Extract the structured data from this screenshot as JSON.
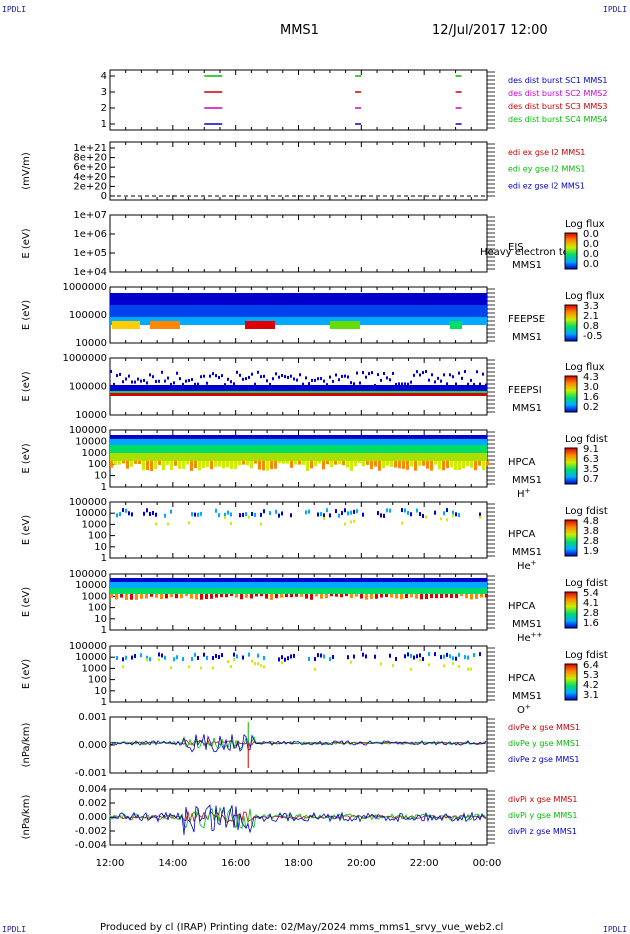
{
  "watermarks": [
    "IPDLI",
    "IPDLI",
    "IPDLI",
    "IPDLI"
  ],
  "header": {
    "mission": "MMS1",
    "date": "12/Jul/2017 12:00"
  },
  "footer": "Produced by cl (IRAP)   Printing date: 02/May/2024   mms_mms1_srvy_vue_web2.cl",
  "chart_data": {
    "type": "multi-panel",
    "x_ticks": [
      "12:00",
      "14:00",
      "16:00",
      "18:00",
      "20:00",
      "22:00",
      "00:00"
    ],
    "panels": [
      {
        "id": "des-burst",
        "ylabel": "",
        "yticks": [
          "4",
          "3",
          "2",
          "1"
        ],
        "legend": [
          {
            "text": "des dist burst SC1 MMS1",
            "color": "#0000cc"
          },
          {
            "text": "des dist burst SC2 MMS2",
            "color": "#cc00cc"
          },
          {
            "text": "des dist burst SC3 MMS3",
            "color": "#cc0000"
          },
          {
            "text": "des dist burst SC4 MMS4",
            "color": "#00bb00"
          }
        ],
        "bursts_hours": [
          15.0,
          19.8,
          23.0
        ],
        "levels": [
          4,
          3,
          2,
          1
        ],
        "level_colors": [
          "#00bb00",
          "#cc0000",
          "#cc00cc",
          "#0000cc"
        ]
      },
      {
        "id": "edi",
        "ylabel": "(mV/m)",
        "yticks": [
          "1e+21",
          "8e+20",
          "6e+20",
          "4e+20",
          "2e+20",
          "0"
        ],
        "legend": [
          {
            "text": "edi ex gse l2 MMS1",
            "color": "#cc0000"
          },
          {
            "text": "edi ey gse l2 MMS1",
            "color": "#00bb00"
          },
          {
            "text": "edi ez gse l2 MMS1",
            "color": "#0000cc"
          }
        ]
      },
      {
        "id": "eis",
        "ylabel": "E (eV)",
        "yticks": [
          "1e+07",
          "1e+06",
          "1e+05",
          "1e+04"
        ],
        "labels": [
          "EIS",
          "MMS1"
        ],
        "overlay": "Heavy electron to",
        "cbar_title": "Log flux",
        "cbar_ticks": [
          "0.0",
          "0.0",
          "0.0",
          "0.0"
        ]
      },
      {
        "id": "feepse",
        "ylabel": "E (eV)",
        "yticks": [
          "1000000",
          "100000",
          "10000"
        ],
        "labels": [
          "FEEPSE",
          "MMS1"
        ],
        "cbar_title": "Log flux",
        "cbar_ticks": [
          "3.3",
          "2.1",
          "0.8",
          "-0.5"
        ]
      },
      {
        "id": "feepsi",
        "ylabel": "E (eV)",
        "yticks": [
          "1000000",
          "100000",
          "10000"
        ],
        "labels": [
          "FEEPSI",
          "MMS1"
        ],
        "cbar_title": "Log flux",
        "cbar_ticks": [
          "4.3",
          "3.0",
          "1.6",
          "0.2"
        ]
      },
      {
        "id": "hpca-h",
        "ylabel": "E (eV)",
        "yticks": [
          "100000",
          "10000",
          "1000",
          "100",
          "10",
          "1"
        ],
        "labels": [
          "HPCA",
          "MMS1"
        ],
        "species": "H",
        "species_sup": "+",
        "cbar_title": "Log fdist",
        "cbar_ticks": [
          "9.1",
          "6.3",
          "3.5",
          "0.7"
        ]
      },
      {
        "id": "hpca-he",
        "ylabel": "E (eV)",
        "yticks": [
          "100000",
          "10000",
          "1000",
          "100",
          "10",
          "1"
        ],
        "labels": [
          "HPCA",
          "MMS1"
        ],
        "species": "He",
        "species_sup": "+",
        "cbar_title": "Log fdist",
        "cbar_ticks": [
          "4.8",
          "3.8",
          "2.8",
          "1.9"
        ]
      },
      {
        "id": "hpca-hepp",
        "ylabel": "E (eV)",
        "yticks": [
          "100000",
          "10000",
          "1000",
          "100",
          "10",
          "1"
        ],
        "labels": [
          "HPCA",
          "MMS1"
        ],
        "species": "He",
        "species_sup": "++",
        "cbar_title": "Log fdist",
        "cbar_ticks": [
          "5.4",
          "4.1",
          "2.8",
          "1.6"
        ]
      },
      {
        "id": "hpca-o",
        "ylabel": "E (eV)",
        "yticks": [
          "100000",
          "10000",
          "1000",
          "100",
          "10",
          "1"
        ],
        "labels": [
          "HPCA",
          "MMS1"
        ],
        "species": "O",
        "species_sup": "+",
        "cbar_title": "Log fdist",
        "cbar_ticks": [
          "6.4",
          "5.3",
          "4.2",
          "3.1"
        ]
      },
      {
        "id": "divpe",
        "ylabel": "(nPa/km)",
        "yticks": [
          "0.001",
          "0.000",
          "-0.001"
        ],
        "legend": [
          {
            "text": "divPe x gse MMS1",
            "color": "#cc0000"
          },
          {
            "text": "divPe y gse MMS1",
            "color": "#00bb00"
          },
          {
            "text": "divPe z gse MMS1",
            "color": "#0000cc"
          }
        ]
      },
      {
        "id": "divpi",
        "ylabel": "(nPa/km)",
        "yticks": [
          "0.004",
          "0.002",
          "0.000",
          "-0.002",
          "-0.004"
        ],
        "legend": [
          {
            "text": "divPi x gse MMS1",
            "color": "#cc0000"
          },
          {
            "text": "divPi y gse MMS1",
            "color": "#00bb00"
          },
          {
            "text": "divPi z gse MMS1",
            "color": "#0000cc"
          }
        ]
      }
    ]
  }
}
